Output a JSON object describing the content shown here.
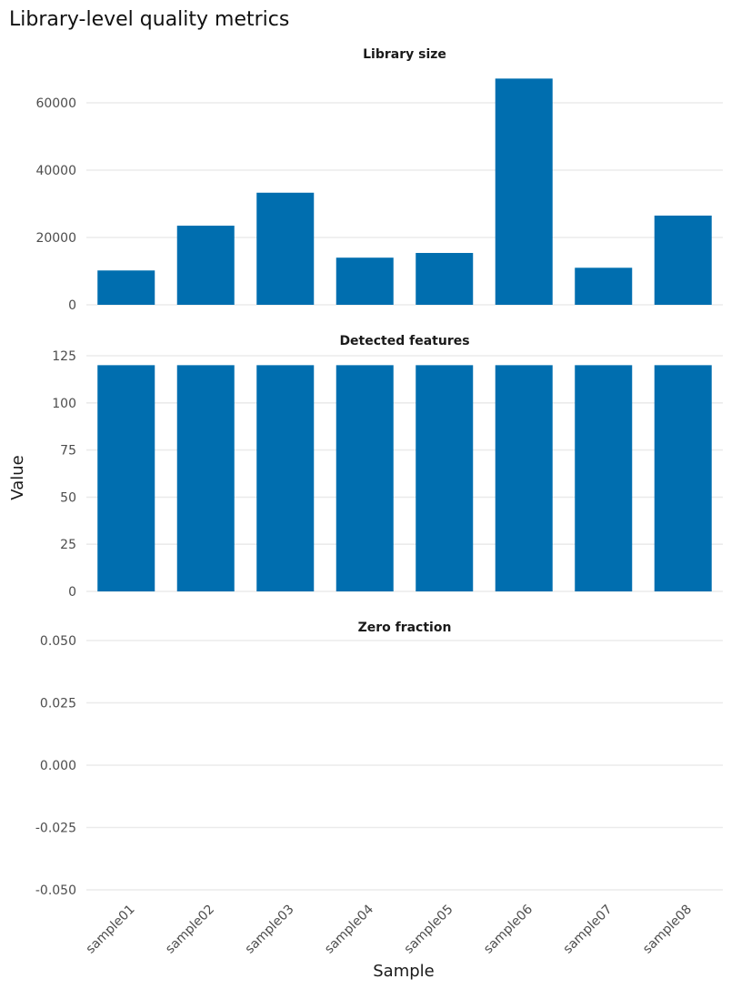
{
  "chart_data": {
    "type": "bar",
    "title": "Library-level quality metrics",
    "xlabel": "Sample",
    "ylabel": "Value",
    "categories": [
      "sample01",
      "sample02",
      "sample03",
      "sample04",
      "sample05",
      "sample06",
      "sample07",
      "sample08"
    ],
    "bar_color": "#006EAF",
    "grid": true,
    "facets": [
      {
        "title": "Library size",
        "ylim": [
          0,
          70000
        ],
        "yticks": [
          0,
          20000,
          40000,
          60000
        ],
        "ytick_labels": [
          "0",
          "20000",
          "40000",
          "60000"
        ],
        "values": [
          10200,
          23500,
          33300,
          14000,
          15400,
          67200,
          11000,
          26500
        ]
      },
      {
        "title": "Detected features",
        "ylim": [
          0,
          125
        ],
        "yticks": [
          0,
          25,
          50,
          75,
          100,
          125
        ],
        "ytick_labels": [
          "0",
          "25",
          "50",
          "75",
          "100",
          "125"
        ],
        "values": [
          120,
          120,
          120,
          120,
          120,
          120,
          120,
          120
        ]
      },
      {
        "title": "Zero fraction",
        "ylim": [
          -0.05,
          0.05
        ],
        "yticks": [
          -0.05,
          -0.025,
          0,
          0.025,
          0.05
        ],
        "ytick_labels": [
          "-0.050",
          "-0.025",
          "0.000",
          "0.025",
          "0.050"
        ],
        "values": [
          0,
          0,
          0,
          0,
          0,
          0,
          0,
          0
        ]
      }
    ]
  }
}
